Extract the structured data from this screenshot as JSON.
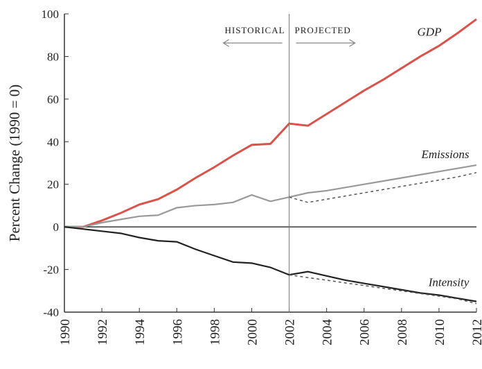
{
  "chart_data": {
    "type": "line",
    "ylabel": "Percent Change (1990 = 0)",
    "x": [
      1990,
      1991,
      1992,
      1993,
      1994,
      1995,
      1996,
      1997,
      1998,
      1999,
      2000,
      2001,
      2002,
      2003,
      2004,
      2005,
      2006,
      2007,
      2008,
      2009,
      2010,
      2011,
      2012
    ],
    "xlim": [
      1990,
      2012
    ],
    "xticks": [
      1990,
      1992,
      1994,
      1996,
      1998,
      2000,
      2002,
      2004,
      2006,
      2008,
      2010,
      2012
    ],
    "ylim": [
      -40,
      100
    ],
    "yticks": [
      -40,
      -20,
      0,
      20,
      40,
      60,
      80,
      100
    ],
    "divider_x": 2002,
    "annotations": {
      "left": "HISTORICAL",
      "right": "PROJECTED"
    },
    "series": [
      {
        "name": "GDP",
        "color": "#d9534a",
        "style": "solid",
        "values": [
          0,
          0,
          3,
          6.5,
          10.5,
          13,
          17.5,
          23,
          28,
          33.5,
          38.5,
          39,
          48.5,
          47.5,
          53,
          58.5,
          64,
          69,
          74.5,
          80,
          85,
          91,
          97.5
        ]
      },
      {
        "name": "Emissions",
        "color": "#999999",
        "style": "solid",
        "values": [
          0,
          0,
          2,
          3.5,
          5,
          5.5,
          9,
          10,
          10.5,
          11.5,
          15,
          12,
          14,
          16,
          17,
          18.5,
          20,
          21.5,
          23,
          24.5,
          26,
          27.5,
          29
        ]
      },
      {
        "name": "Intensity",
        "color": "#222222",
        "style": "solid",
        "values": [
          0,
          -1,
          -2,
          -3,
          -5,
          -6.5,
          -7,
          -10.5,
          -13.5,
          -16.5,
          -17,
          -19,
          -22.5,
          -21,
          -23,
          -25,
          -26.5,
          -28,
          -29.5,
          -31,
          -32,
          -33.5,
          -35
        ]
      },
      {
        "color": "#555555",
        "style": "dashed",
        "values": [
          null,
          null,
          null,
          null,
          null,
          null,
          null,
          null,
          null,
          null,
          null,
          null,
          14,
          11.5,
          13,
          14.5,
          16,
          17.5,
          19,
          20.5,
          22,
          23.5,
          25.5
        ]
      },
      {
        "color": "#555555",
        "style": "dashed",
        "values": [
          null,
          null,
          null,
          null,
          null,
          null,
          null,
          null,
          null,
          null,
          null,
          null,
          -22.5,
          -23.8,
          -25,
          -26.3,
          -27.5,
          -28.8,
          -30,
          -31.3,
          -32.5,
          -33.8,
          -36
        ]
      }
    ]
  }
}
